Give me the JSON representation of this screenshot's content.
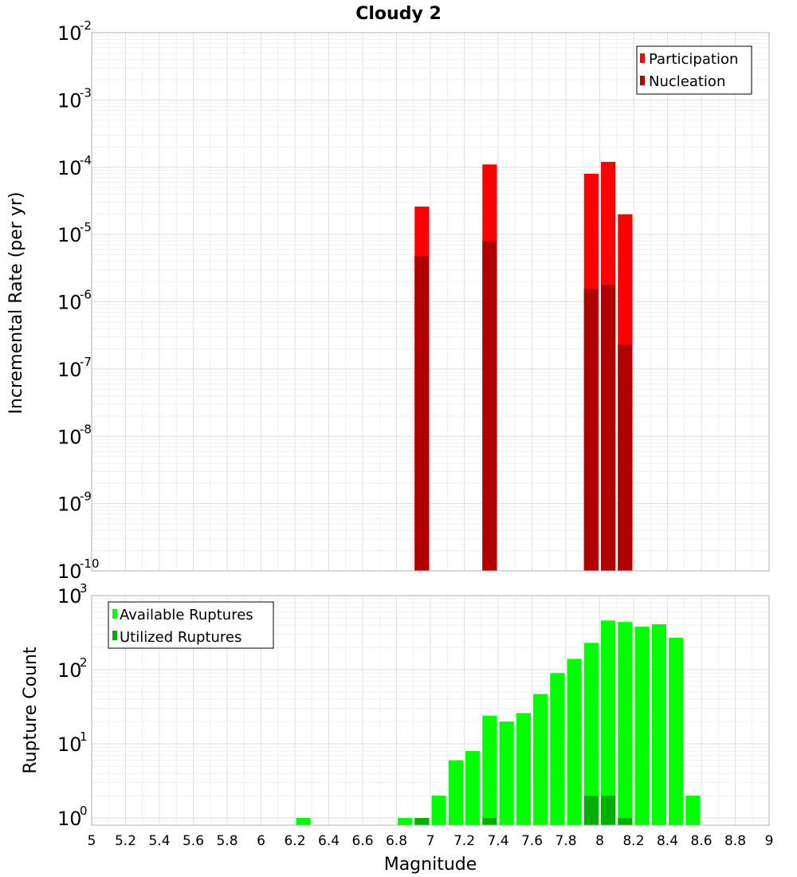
{
  "chart_data": [
    {
      "type": "bar",
      "title": "Cloudy 2",
      "xlabel": "Magnitude",
      "ylabel": "Incremental Rate (per yr)",
      "yscale": "log",
      "ylim": [
        1e-10,
        0.01
      ],
      "xlim": [
        5,
        9
      ],
      "bin_width": 0.1,
      "y_ticks": [
        {
          "base": "10",
          "exp": "-10"
        },
        {
          "base": "10",
          "exp": "-9"
        },
        {
          "base": "10",
          "exp": "-8"
        },
        {
          "base": "10",
          "exp": "-7"
        },
        {
          "base": "10",
          "exp": "-6"
        },
        {
          "base": "10",
          "exp": "-5"
        },
        {
          "base": "10",
          "exp": "-4"
        },
        {
          "base": "10",
          "exp": "-3"
        },
        {
          "base": "10",
          "exp": "-2"
        }
      ],
      "legend_position": "top-right",
      "series": [
        {
          "name": "Participation",
          "color": "#ff0000",
          "points": [
            {
              "x": 6.95,
              "y": 2.6e-05
            },
            {
              "x": 7.35,
              "y": 0.00011
            },
            {
              "x": 7.95,
              "y": 8e-05
            },
            {
              "x": 8.05,
              "y": 0.00012
            },
            {
              "x": 8.15,
              "y": 2e-05
            }
          ]
        },
        {
          "name": "Nucleation",
          "color": "#b00000",
          "points": [
            {
              "x": 6.95,
              "y": 4.8e-06
            },
            {
              "x": 7.35,
              "y": 8e-06
            },
            {
              "x": 7.95,
              "y": 1.55e-06
            },
            {
              "x": 8.05,
              "y": 1.8e-06
            },
            {
              "x": 8.15,
              "y": 2.3e-07
            }
          ]
        }
      ]
    },
    {
      "type": "bar",
      "title": "",
      "xlabel": "Magnitude",
      "ylabel": "Rupture Count",
      "yscale": "log",
      "ylim": [
        0.8,
        1000
      ],
      "xlim": [
        5,
        9
      ],
      "bin_width": 0.1,
      "y_ticks": [
        {
          "base": "10",
          "exp": "0"
        },
        {
          "base": "10",
          "exp": "1"
        },
        {
          "base": "10",
          "exp": "2"
        },
        {
          "base": "10",
          "exp": "3"
        }
      ],
      "x_ticks": [
        "5",
        "5.2",
        "5.4",
        "5.6",
        "5.8",
        "6",
        "6.2",
        "6.4",
        "6.6",
        "6.8",
        "7",
        "7.2",
        "7.4",
        "7.6",
        "7.8",
        "8",
        "8.2",
        "8.4",
        "8.6",
        "8.8",
        "9"
      ],
      "legend_position": "top-left",
      "series": [
        {
          "name": "Available Ruptures",
          "color": "#00ff00",
          "points": [
            {
              "x": 6.25,
              "y": 1
            },
            {
              "x": 6.85,
              "y": 1
            },
            {
              "x": 6.95,
              "y": 1
            },
            {
              "x": 7.05,
              "y": 2
            },
            {
              "x": 7.15,
              "y": 6
            },
            {
              "x": 7.25,
              "y": 8
            },
            {
              "x": 7.35,
              "y": 24
            },
            {
              "x": 7.45,
              "y": 20
            },
            {
              "x": 7.55,
              "y": 26
            },
            {
              "x": 7.65,
              "y": 47
            },
            {
              "x": 7.75,
              "y": 90
            },
            {
              "x": 7.85,
              "y": 140
            },
            {
              "x": 7.95,
              "y": 230
            },
            {
              "x": 8.05,
              "y": 460
            },
            {
              "x": 8.15,
              "y": 440
            },
            {
              "x": 8.25,
              "y": 380
            },
            {
              "x": 8.35,
              "y": 410
            },
            {
              "x": 8.45,
              "y": 270
            },
            {
              "x": 8.55,
              "y": 2
            }
          ]
        },
        {
          "name": "Utilized Ruptures",
          "color": "#00b000",
          "points": [
            {
              "x": 6.95,
              "y": 1
            },
            {
              "x": 7.35,
              "y": 1
            },
            {
              "x": 7.95,
              "y": 2
            },
            {
              "x": 8.05,
              "y": 2
            },
            {
              "x": 8.15,
              "y": 1
            }
          ]
        }
      ]
    }
  ]
}
